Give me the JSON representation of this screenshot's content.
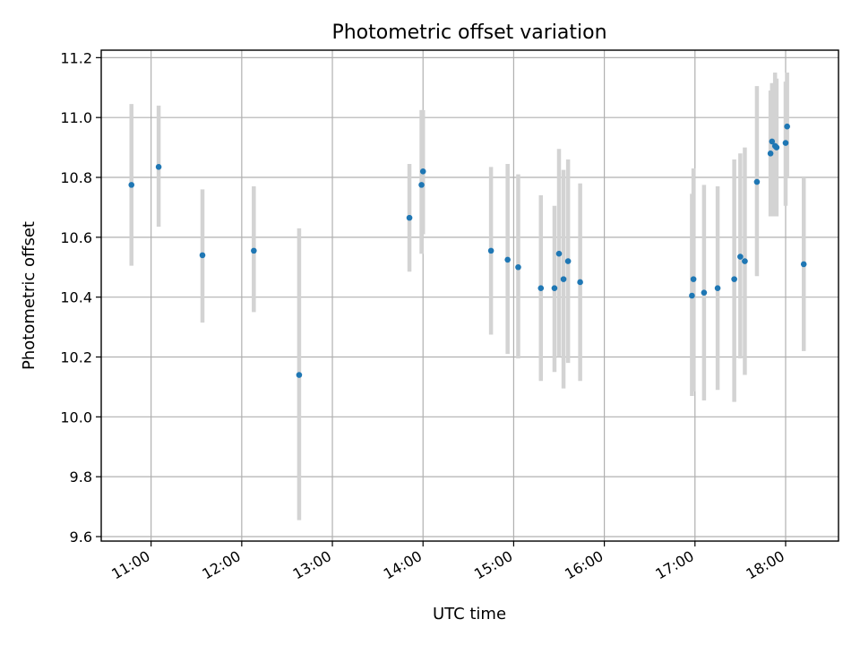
{
  "chart_data": {
    "type": "scatter",
    "title": "Photometric offset variation",
    "xlabel": "UTC time",
    "ylabel": "Photometric offset",
    "x_unit": "time of day (HH:MM)",
    "xlim": [
      "10:27",
      "18:35"
    ],
    "ylim": [
      9.585,
      11.225
    ],
    "x_ticks": [
      "11:00",
      "12:00",
      "13:00",
      "14:00",
      "15:00",
      "16:00",
      "17:00",
      "18:00"
    ],
    "y_ticks": [
      "9.6",
      "9.8",
      "10.0",
      "10.2",
      "10.4",
      "10.6",
      "10.8",
      "11.0",
      "11.2"
    ],
    "y_tick_values": [
      9.6,
      9.8,
      10.0,
      10.2,
      10.4,
      10.6,
      10.8,
      11.0,
      11.2
    ],
    "grid": true,
    "point_color": "#1f77b4",
    "errorbar_color": "#d3d3d3",
    "points": [
      {
        "x": "10:47",
        "y": 10.775,
        "low": 10.505,
        "high": 11.045
      },
      {
        "x": "11:05",
        "y": 10.835,
        "low": 10.635,
        "high": 11.04
      },
      {
        "x": "11:34",
        "y": 10.54,
        "low": 10.315,
        "high": 10.76
      },
      {
        "x": "12:08",
        "y": 10.555,
        "low": 10.35,
        "high": 10.77
      },
      {
        "x": "12:38",
        "y": 10.14,
        "low": 9.655,
        "high": 10.63
      },
      {
        "x": "13:51",
        "y": 10.665,
        "low": 10.485,
        "high": 10.845
      },
      {
        "x": "13:59",
        "y": 10.775,
        "low": 10.545,
        "high": 11.025
      },
      {
        "x": "14:00",
        "y": 10.82,
        "low": 10.61,
        "high": 11.025
      },
      {
        "x": "14:45",
        "y": 10.555,
        "low": 10.275,
        "high": 10.835
      },
      {
        "x": "14:56",
        "y": 10.525,
        "low": 10.21,
        "high": 10.845
      },
      {
        "x": "15:03",
        "y": 10.5,
        "low": 10.195,
        "high": 10.81
      },
      {
        "x": "15:18",
        "y": 10.43,
        "low": 10.12,
        "high": 10.74
      },
      {
        "x": "15:27",
        "y": 10.43,
        "low": 10.15,
        "high": 10.705
      },
      {
        "x": "15:30",
        "y": 10.545,
        "low": 10.2,
        "high": 10.895
      },
      {
        "x": "15:33",
        "y": 10.46,
        "low": 10.095,
        "high": 10.825
      },
      {
        "x": "15:36",
        "y": 10.52,
        "low": 10.18,
        "high": 10.86
      },
      {
        "x": "15:44",
        "y": 10.45,
        "low": 10.12,
        "high": 10.78
      },
      {
        "x": "16:58",
        "y": 10.405,
        "low": 10.07,
        "high": 10.745
      },
      {
        "x": "16:59",
        "y": 10.46,
        "low": 10.085,
        "high": 10.83
      },
      {
        "x": "17:06",
        "y": 10.415,
        "low": 10.055,
        "high": 10.775
      },
      {
        "x": "17:15",
        "y": 10.43,
        "low": 10.09,
        "high": 10.77
      },
      {
        "x": "17:26",
        "y": 10.46,
        "low": 10.05,
        "high": 10.86
      },
      {
        "x": "17:30",
        "y": 10.535,
        "low": 10.195,
        "high": 10.88
      },
      {
        "x": "17:33",
        "y": 10.52,
        "low": 10.14,
        "high": 10.9
      },
      {
        "x": "17:41",
        "y": 10.785,
        "low": 10.47,
        "high": 11.105
      },
      {
        "x": "17:50",
        "y": 10.88,
        "low": 10.67,
        "high": 11.09
      },
      {
        "x": "17:51",
        "y": 10.92,
        "low": 10.67,
        "high": 11.115
      },
      {
        "x": "17:53",
        "y": 10.905,
        "low": 10.67,
        "high": 11.15
      },
      {
        "x": "17:54",
        "y": 10.9,
        "low": 10.67,
        "high": 11.13
      },
      {
        "x": "18:00",
        "y": 10.915,
        "low": 10.705,
        "high": 11.12
      },
      {
        "x": "18:01",
        "y": 10.97,
        "low": 10.8,
        "high": 11.15
      },
      {
        "x": "18:12",
        "y": 10.51,
        "low": 10.22,
        "high": 10.8
      }
    ]
  }
}
